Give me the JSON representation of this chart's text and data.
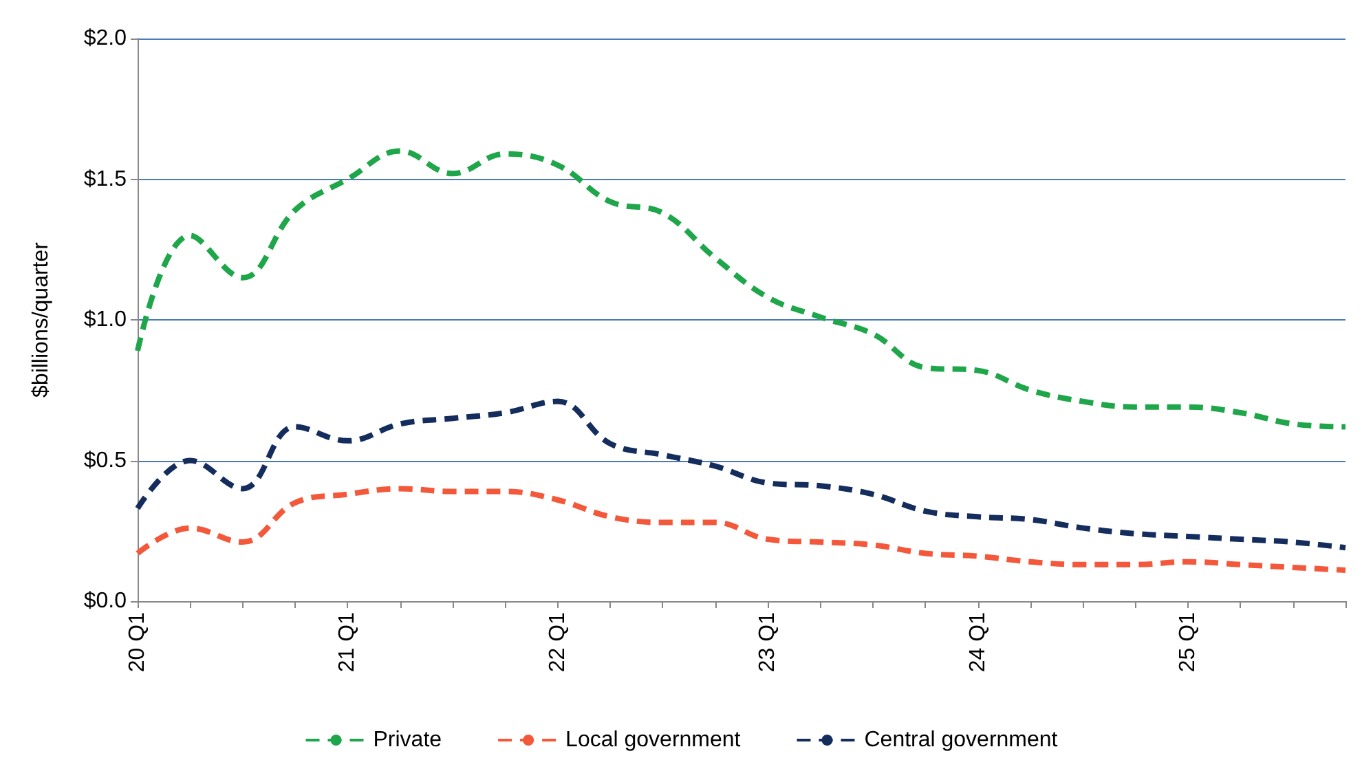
{
  "chart_data": {
    "type": "line",
    "ylabel": "$billions/quarter",
    "categories": [
      "20 Q1",
      null,
      null,
      null,
      "21 Q1",
      null,
      null,
      null,
      "22 Q1",
      null,
      null,
      null,
      "23 Q1",
      null,
      null,
      null,
      "24 Q1",
      null,
      null,
      null,
      "25 Q1",
      null,
      null,
      null
    ],
    "series": [
      {
        "name": "Private",
        "color": "#1fa64a",
        "values": [
          0.89,
          1.3,
          1.15,
          1.39,
          1.5,
          1.6,
          1.52,
          1.59,
          1.55,
          1.42,
          1.38,
          1.22,
          1.08,
          1.01,
          0.95,
          0.83,
          0.82,
          0.75,
          0.71,
          0.69,
          0.69,
          0.67,
          0.63,
          0.62
        ]
      },
      {
        "name": "Local government",
        "color": "#f4583a",
        "values": [
          0.17,
          0.26,
          0.21,
          0.35,
          0.38,
          0.4,
          0.39,
          0.39,
          0.36,
          0.3,
          0.28,
          0.28,
          0.22,
          0.21,
          0.2,
          0.17,
          0.16,
          0.14,
          0.13,
          0.13,
          0.14,
          0.13,
          0.12,
          0.11
        ]
      },
      {
        "name": "Central government",
        "color": "#142d5c",
        "values": [
          0.33,
          0.5,
          0.4,
          0.62,
          0.57,
          0.63,
          0.65,
          0.67,
          0.71,
          0.56,
          0.52,
          0.48,
          0.42,
          0.41,
          0.38,
          0.32,
          0.3,
          0.29,
          0.26,
          0.24,
          0.23,
          0.22,
          0.21,
          0.19
        ]
      }
    ],
    "ylim": [
      0,
      2
    ],
    "yticks": [
      {
        "value": 0,
        "label": "$0.0"
      },
      {
        "value": 0.5,
        "label": "$0.5"
      },
      {
        "value": 1,
        "label": "$1.0"
      },
      {
        "value": 1.5,
        "label": "$1.5"
      },
      {
        "value": 2,
        "label": "$2.0"
      }
    ],
    "grid": "y",
    "legend": "bottom",
    "marker": "none",
    "line_style": "dashed"
  }
}
